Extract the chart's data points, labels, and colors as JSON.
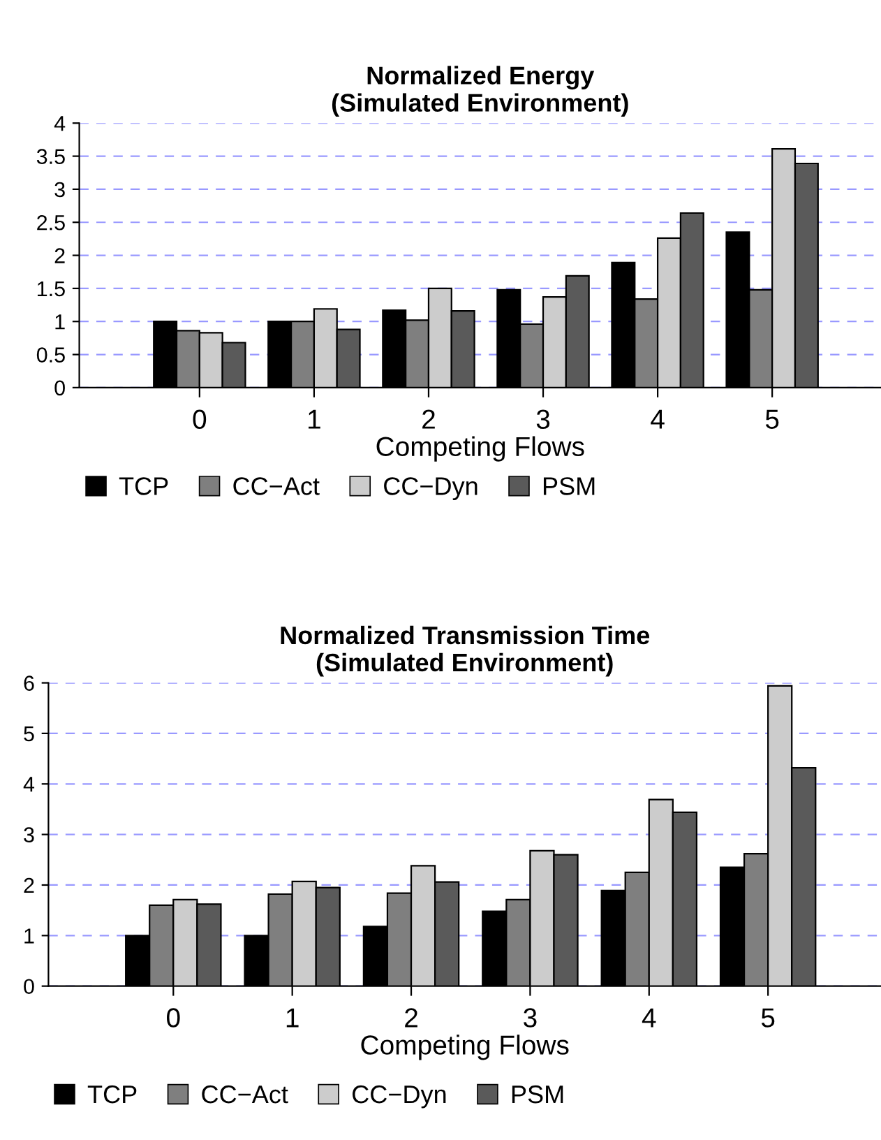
{
  "chart_data": [
    {
      "type": "bar",
      "title": "Normalized Energy\n(Simulated Environment)",
      "xlabel": "Competing Flows",
      "categories": [
        "0",
        "1",
        "2",
        "3",
        "4",
        "5"
      ],
      "series": [
        {
          "name": "TCP",
          "color": "#000000",
          "values": [
            1.0,
            1.0,
            1.17,
            1.48,
            1.89,
            2.35
          ]
        },
        {
          "name": "CC−Act",
          "color": "#7f7f7f",
          "values": [
            0.86,
            1.0,
            1.02,
            0.96,
            1.34,
            1.48
          ]
        },
        {
          "name": "CC−Dyn",
          "color": "#cccccc",
          "values": [
            0.83,
            1.19,
            1.5,
            1.37,
            2.26,
            3.61
          ]
        },
        {
          "name": "PSM",
          "color": "#5a5a5a",
          "values": [
            0.68,
            0.88,
            1.16,
            1.69,
            2.64,
            3.39
          ]
        }
      ],
      "ylim": [
        0,
        4
      ],
      "yticks": [
        0,
        0.5,
        1,
        1.5,
        2,
        2.5,
        3,
        3.5,
        4
      ],
      "grid": "y",
      "legend": "bottom"
    },
    {
      "type": "bar",
      "title": "Normalized Transmission Time\n(Simulated Environment)",
      "xlabel": "Competing Flows",
      "categories": [
        "0",
        "1",
        "2",
        "3",
        "4",
        "5"
      ],
      "series": [
        {
          "name": "TCP",
          "color": "#000000",
          "values": [
            1.0,
            1.0,
            1.18,
            1.48,
            1.89,
            2.35
          ]
        },
        {
          "name": "CC−Act",
          "color": "#7f7f7f",
          "values": [
            1.6,
            1.82,
            1.84,
            1.71,
            2.25,
            2.62
          ]
        },
        {
          "name": "CC−Dyn",
          "color": "#cccccc",
          "values": [
            1.71,
            2.07,
            2.38,
            2.68,
            3.69,
            5.94
          ]
        },
        {
          "name": "PSM",
          "color": "#5a5a5a",
          "values": [
            1.62,
            1.95,
            2.06,
            2.6,
            3.44,
            4.32
          ]
        }
      ],
      "ylim": [
        0,
        6
      ],
      "yticks": [
        0,
        1,
        2,
        3,
        4,
        5,
        6
      ],
      "grid": "y",
      "legend": "bottom"
    }
  ]
}
